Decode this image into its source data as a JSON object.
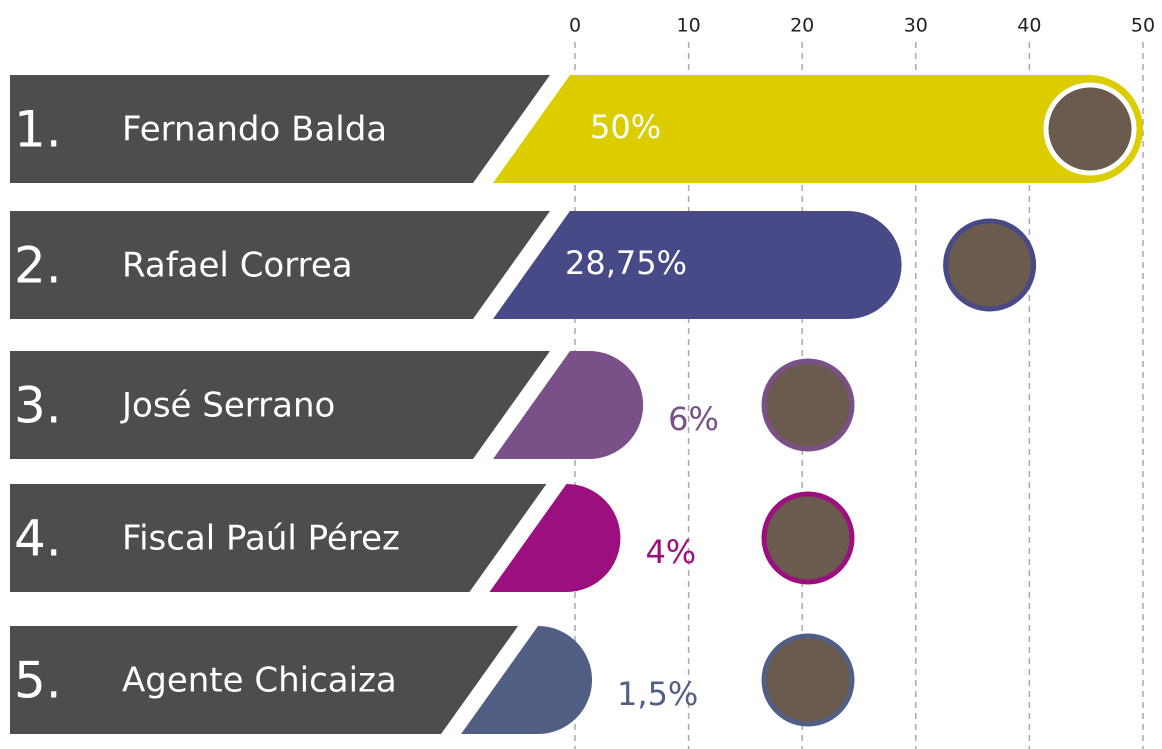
{
  "chart_data": {
    "type": "hbar",
    "ranks": [
      "1.",
      "2.",
      "3.",
      "4.",
      "5."
    ],
    "categories": [
      "Fernando Balda",
      "Rafael Correa",
      "José Serrano",
      "Fiscal Paúl Pérez",
      "Agente Chicaiza"
    ],
    "values": [
      50,
      28.75,
      6,
      4,
      1.5
    ],
    "value_labels": [
      "50%",
      "28,75%",
      "6%",
      "4%",
      "1,5%"
    ],
    "colors": [
      "#dccd00",
      "#474a86",
      "#7a5088",
      "#9c0f7f",
      "#515f85"
    ],
    "xlim": [
      0,
      50
    ],
    "xticks": [
      0,
      10,
      20,
      30,
      40,
      50
    ],
    "grid": true
  }
}
